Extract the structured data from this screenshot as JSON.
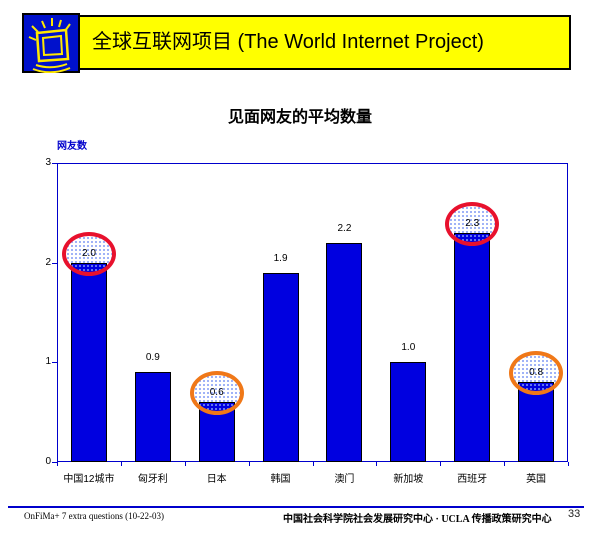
{
  "header": {
    "title": "全球互联网项目 (The World Internet Project)",
    "banner_color": "#FFFF00",
    "icon": "monitor-burst-icon",
    "icon_bg_color": "#0011CC",
    "icon_stroke_color": "#FFE800"
  },
  "slide": {
    "title": "见面网友的平均数量"
  },
  "chart_data": {
    "type": "bar",
    "title": "见面网友的平均数量",
    "ylabel": "网友数",
    "xlabel": "",
    "categories": [
      "中国12城市",
      "匈牙利",
      "日本",
      "韩国",
      "澳门",
      "新加坡",
      "西班牙",
      "英国"
    ],
    "values": [
      2.0,
      0.9,
      0.6,
      1.9,
      2.2,
      1.0,
      2.3,
      0.8
    ],
    "value_labels": [
      "2.0",
      "0.9",
      "0.6",
      "1.9",
      "2.2",
      "1.0",
      "2.3",
      "0.8"
    ],
    "ylim": [
      0,
      3
    ],
    "yticks": [
      0,
      1,
      2,
      3
    ],
    "grid": false,
    "legend": "none",
    "bar_color": "#0000E0",
    "bar_border_color": "#000000",
    "axis_color": "#0000CC",
    "annotations": [
      {
        "index": 0,
        "shape": "ellipse",
        "color": "#E8112D",
        "color_name": "red"
      },
      {
        "index": 2,
        "shape": "ellipse",
        "color": "#F07818",
        "color_name": "orange"
      },
      {
        "index": 6,
        "shape": "ellipse",
        "color": "#E8112D",
        "color_name": "red"
      },
      {
        "index": 7,
        "shape": "ellipse",
        "color": "#F07818",
        "color_name": "orange"
      }
    ]
  },
  "footer": {
    "left": "OnFiMa+ 7 extra questions (10-22-03)",
    "center": "中国社会科学院社会发展研究中心 · UCLA 传播政策研究中心",
    "page": "33",
    "rule_color": "#0000CC"
  }
}
